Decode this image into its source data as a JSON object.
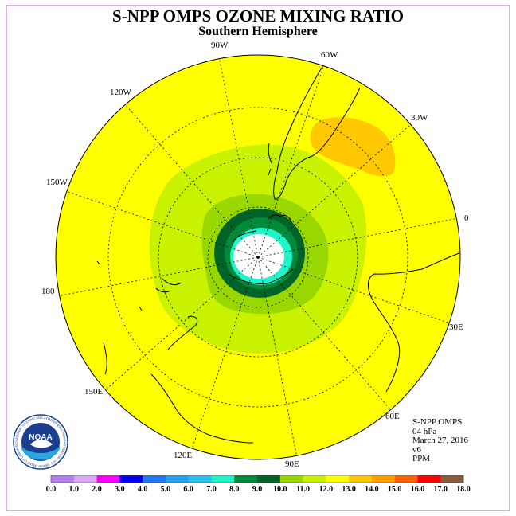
{
  "title": "S-NPP OMPS OZONE MIXING RATIO",
  "subtitle": "Southern Hemisphere",
  "longitude_labels": [
    "90W",
    "60W",
    "30W",
    "0",
    "30E",
    "60E",
    "90E",
    "120E",
    "150E",
    "180",
    "150W",
    "120W"
  ],
  "info": {
    "instrument": "S-NPP OMPS",
    "level": "04 hPa",
    "date": "March 27, 2016",
    "version": "v6",
    "units": "PPM"
  },
  "logo": {
    "text": "NOAA",
    "ring_text": "NATIONAL OCEANIC AND ATMOSPHERIC ADMINISTRATION · U.S. DEPARTMENT OF COMMERCE"
  },
  "colorbar": {
    "colors": [
      "#b77ef2",
      "#dca8f5",
      "#ff00ff",
      "#0000ee",
      "#1e78f0",
      "#23a3ee",
      "#27c3f0",
      "#1ef5c8",
      "#008a3a",
      "#006428",
      "#98d800",
      "#c8f200",
      "#ffff00",
      "#ffc800",
      "#ffa000",
      "#ff6400",
      "#ff0000",
      "#8a5a3c"
    ],
    "tick_labels": [
      "0.0",
      "1.0",
      "2.0",
      "3.0",
      "4.0",
      "5.0",
      "6.0",
      "7.0",
      "8.0",
      "9.0",
      "10.0",
      "11.0",
      "12.0",
      "13.0",
      "14.0",
      "15.0",
      "16.0",
      "17.0",
      "18.0"
    ]
  },
  "map_colors": {
    "background": "#ffff00",
    "high": "#ffc800",
    "mid": "#c8f200",
    "low": "#98d800",
    "ring_outer": "#006428",
    "ring_inner": "#008a3a",
    "cyan": "#1ef5c8",
    "core": "#ffffff"
  }
}
